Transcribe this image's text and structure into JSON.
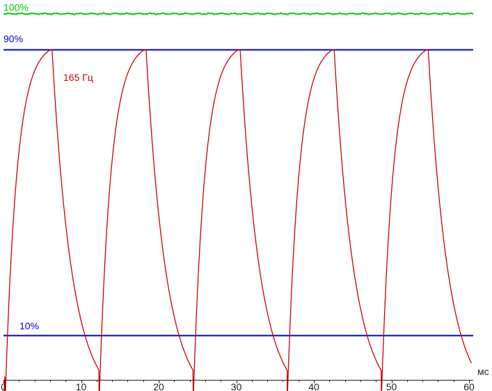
{
  "chart_data": {
    "type": "line",
    "x_unit": "мс",
    "xlim": [
      0,
      61
    ],
    "x_ticks": [
      0,
      10,
      20,
      30,
      40,
      50,
      60
    ],
    "ylim": [
      0,
      1.1
    ],
    "grid": false,
    "reference_lines": [
      {
        "label": "100%",
        "value": 1.0,
        "color": "#00cc00"
      },
      {
        "label": "90%",
        "value": 0.9,
        "color": "#0000cc"
      },
      {
        "label": "10%",
        "value": 0.1,
        "color": "#0000cc"
      }
    ],
    "series": [
      {
        "name": "165 Гц",
        "color": "#cc0000",
        "period_ms": 12.12,
        "duty_ms": 6.06,
        "first_rise_ms": 0.2,
        "low_level": 0.0,
        "high_level": 0.9,
        "rise_tau_ms": 1.5,
        "fall_tau_ms": 2.6
      }
    ]
  }
}
